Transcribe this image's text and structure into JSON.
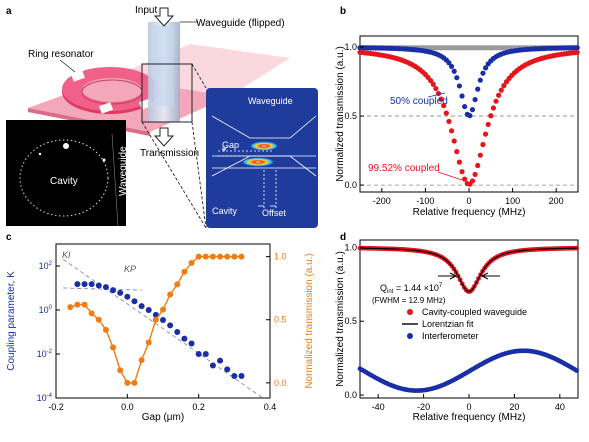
{
  "panel_labels": {
    "a": "a",
    "b": "b",
    "c": "c",
    "d": "d"
  },
  "panel_a": {
    "input_label": "Input",
    "waveguide_label": "Waveguide (flipped)",
    "ring_label": "Ring resonator",
    "transmission_label": "Transmission",
    "cavity_label": "Cavity",
    "waveguide_side_label": "Waveguide",
    "inset": {
      "waveguide": "Waveguide",
      "gap": "Gap",
      "cavity": "Cavity",
      "offset": "Offset"
    }
  },
  "colors": {
    "red": "#e8141c",
    "blue": "#1a2ea8",
    "orange": "#f07c14",
    "gray": "#9a9a9a",
    "navy": "#1f3c9c",
    "pink": "#f06080"
  },
  "chart_data": [
    {
      "panel": "b",
      "type": "scatter",
      "xlabel": "Relative frequency (MHz)",
      "ylabel": "Normalized transmission (a.u.)",
      "xlim": [
        -250,
        250
      ],
      "ylim": [
        -0.05,
        1.08
      ],
      "xticks": [
        "-200",
        "-100",
        "0",
        "100",
        "200"
      ],
      "yticks": [
        "0.0",
        "0.5",
        "1.0"
      ],
      "hlines": [
        0.0,
        0.5
      ],
      "annotations": [
        "50% coupled",
        "99.52% coupled"
      ],
      "series": [
        {
          "color": "gray",
          "model": {
            "depth": 0.0,
            "fwhm": 100,
            "baseline": 0.995
          }
        },
        {
          "color": "blue",
          "model": {
            "depth": 0.5,
            "fwhm": 50,
            "baseline": 1.0
          }
        },
        {
          "color": "red",
          "model": {
            "depth": 0.9952,
            "fwhm": 100,
            "baseline": 1.0
          }
        }
      ]
    },
    {
      "panel": "c",
      "type": "scatter",
      "xlabel": "Gap (μm)",
      "ylabel_left": "Coupling parameter, K",
      "ylabel_right": "Normalized transmission (a.u.)",
      "xlim": [
        -0.2,
        0.4
      ],
      "xticks": [
        "-0.2",
        "0.0",
        "0.2",
        "0.4"
      ],
      "y_left_scale": "log",
      "y_left_lim": [
        0.0001,
        1000
      ],
      "y_left_ticks": [
        "10^2",
        "10^0",
        "10^-2",
        "10^-4"
      ],
      "y_right_lim": [
        -0.12,
        1.1
      ],
      "y_right_ticks": [
        "0.0",
        "0.5",
        "1.0"
      ],
      "annotations": [
        "KI",
        "KP"
      ],
      "coupling_K": {
        "color": "blue",
        "x": [
          -0.14,
          -0.12,
          -0.1,
          -0.08,
          -0.06,
          -0.04,
          -0.02,
          0.0,
          0.02,
          0.04,
          0.06,
          0.08,
          0.1,
          0.12,
          0.14,
          0.16,
          0.18,
          0.2,
          0.22,
          0.24,
          0.26,
          0.28,
          0.3,
          0.32
        ],
        "y": [
          15,
          15,
          15,
          13,
          11,
          8,
          6,
          4,
          2.5,
          1.5,
          1,
          0.6,
          0.35,
          0.2,
          0.1,
          0.05,
          0.03,
          0.01,
          0.01,
          0.003,
          0.005,
          0.002,
          0.001,
          0.001
        ]
      },
      "transmission": {
        "color": "orange",
        "x": [
          -0.16,
          -0.14,
          -0.12,
          -0.1,
          -0.08,
          -0.06,
          -0.04,
          -0.02,
          0.0,
          0.02,
          0.04,
          0.06,
          0.08,
          0.1,
          0.12,
          0.14,
          0.16,
          0.18,
          0.2,
          0.22,
          0.24,
          0.26,
          0.28,
          0.3,
          0.32
        ],
        "y": [
          0.6,
          0.62,
          0.62,
          0.55,
          0.5,
          0.42,
          0.28,
          0.1,
          0.0,
          0.0,
          0.18,
          0.32,
          0.5,
          0.58,
          0.7,
          0.78,
          0.88,
          0.95,
          1.0,
          1.0,
          1.0,
          1.0,
          1.0,
          1.0,
          1.0
        ]
      },
      "guide_lines": [
        {
          "x": [
            -0.18,
            0.04
          ],
          "y": [
            10,
            8
          ]
        },
        {
          "x": [
            -0.18,
            0.38
          ],
          "y": [
            200,
            0.0001
          ]
        }
      ]
    },
    {
      "panel": "d",
      "type": "scatter",
      "xlabel": "Relative frequency (MHz)",
      "ylabel": "Normalized transmission (a.u.)",
      "xlim": [
        -48,
        48
      ],
      "ylim": [
        -0.02,
        1.05
      ],
      "xticks": [
        "-40",
        "-20",
        "0",
        "20",
        "40"
      ],
      "yticks": [
        "0.0",
        "0.5",
        "1.0"
      ],
      "annotation": {
        "q_prefix": "Q",
        "q_sub": "int",
        "q_value": " = 1.44 ×10",
        "q_exp": "7",
        "fwhm": "(FWHM = 12.9 MHz)"
      },
      "legend": [
        "Cavity-coupled waveguide",
        "Lorentzian fit",
        "Interferometer"
      ],
      "series": [
        {
          "name": "Cavity-coupled waveguide",
          "color": "red",
          "model": {
            "depth": 0.3,
            "fwhm": 12.9,
            "baseline": 1.0
          }
        },
        {
          "name": "Lorentzian fit",
          "color": "black",
          "model": {
            "depth": 0.3,
            "fwhm": 12.9,
            "baseline": 1.0
          }
        },
        {
          "name": "Interferometer",
          "color": "blue",
          "model": {
            "center": 0.165,
            "amplitude": 0.135,
            "period": 94,
            "min_at": -23
          }
        }
      ]
    }
  ]
}
